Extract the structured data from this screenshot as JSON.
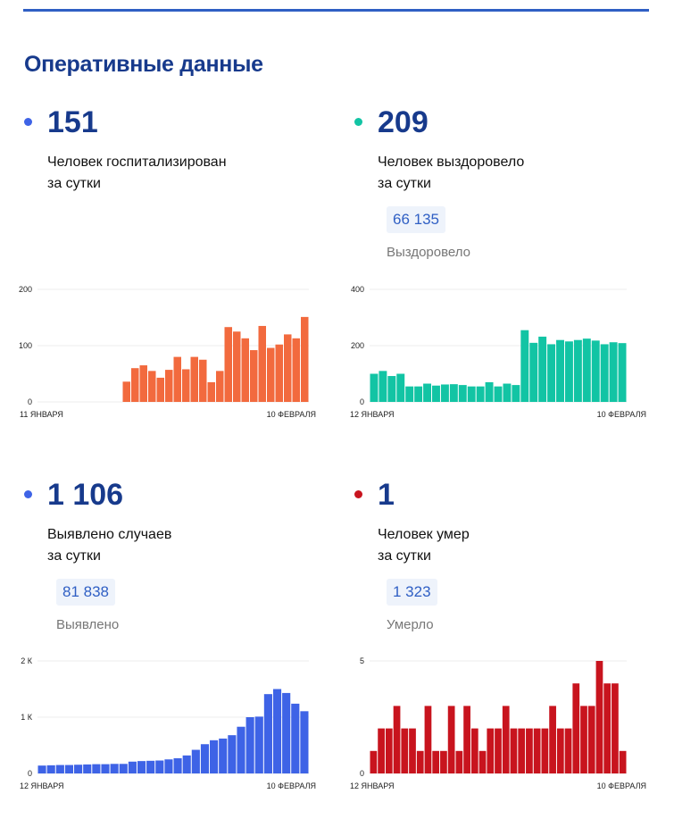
{
  "heading": "Оперативные данные",
  "blocks": [
    {
      "number": "151",
      "line1": "Человек госпитализирован",
      "line2": "за сутки",
      "color": "#3e63e6"
    },
    {
      "number": "209",
      "line1": "Человек выздоровело",
      "line2": "за сутки",
      "total": "66 135",
      "total_label": "Выздоровело",
      "color": "#12c4a4"
    },
    {
      "number": "1 106",
      "line1": "Выявлено случаев",
      "line2": "за сутки",
      "total": "81 838",
      "total_label": "Выявлено",
      "color": "#3e63e6"
    },
    {
      "number": "1",
      "line1": "Человек умер",
      "line2": "за сутки",
      "total": "1 323",
      "total_label": "Умерло",
      "color": "#c8141e"
    }
  ],
  "chart_data": [
    {
      "type": "bar",
      "title": "",
      "color": "#f26a3e",
      "ylim": [
        0,
        200
      ],
      "yticks": [
        0,
        100,
        200
      ],
      "ytick_labels": [
        "0",
        "100",
        "200"
      ],
      "x_start": "11 ЯНВАРЯ",
      "x_end": "10 ФЕВРАЛЯ",
      "values": [
        null,
        null,
        null,
        null,
        null,
        null,
        null,
        null,
        null,
        null,
        36,
        60,
        65,
        55,
        43,
        57,
        80,
        58,
        80,
        75,
        35,
        55,
        133,
        125,
        113,
        92,
        135,
        96,
        102,
        120,
        113,
        151
      ]
    },
    {
      "type": "bar",
      "title": "",
      "color": "#12c4a4",
      "ylim": [
        0,
        400
      ],
      "yticks": [
        0,
        200,
        400
      ],
      "ytick_labels": [
        "0",
        "200",
        "400"
      ],
      "x_start": "12 ЯНВАРЯ",
      "x_end": "10 ФЕВРАЛЯ",
      "values": [
        100,
        110,
        92,
        100,
        55,
        55,
        65,
        58,
        62,
        63,
        60,
        55,
        55,
        70,
        55,
        65,
        60,
        255,
        210,
        232,
        205,
        220,
        215,
        220,
        225,
        218,
        205,
        212,
        209
      ]
    },
    {
      "type": "bar",
      "title": "",
      "color": "#3e63e6",
      "ylim": [
        0,
        2000
      ],
      "yticks": [
        0,
        1000,
        2000
      ],
      "ytick_labels": [
        "0",
        "1 К",
        "2 К"
      ],
      "x_start": "12 ЯНВАРЯ",
      "x_end": "10 ФЕВРАЛЯ",
      "values": [
        140,
        145,
        150,
        150,
        155,
        160,
        165,
        165,
        170,
        170,
        210,
        220,
        225,
        230,
        250,
        270,
        320,
        420,
        520,
        590,
        620,
        680,
        830,
        1000,
        1010,
        1410,
        1500,
        1430,
        1240,
        1106
      ]
    },
    {
      "type": "bar",
      "title": "",
      "color": "#c8141e",
      "ylim": [
        0,
        5
      ],
      "yticks": [
        0,
        5
      ],
      "ytick_labels": [
        "0",
        "5"
      ],
      "x_start": "12 ЯНВАРЯ",
      "x_end": "10 ФЕВРАЛЯ",
      "values": [
        1,
        2,
        2,
        3,
        2,
        2,
        1,
        3,
        1,
        1,
        3,
        1,
        3,
        2,
        1,
        2,
        2,
        3,
        2,
        2,
        2,
        2,
        2,
        3,
        2,
        2,
        4,
        3,
        3,
        5,
        4,
        4,
        1
      ]
    }
  ]
}
